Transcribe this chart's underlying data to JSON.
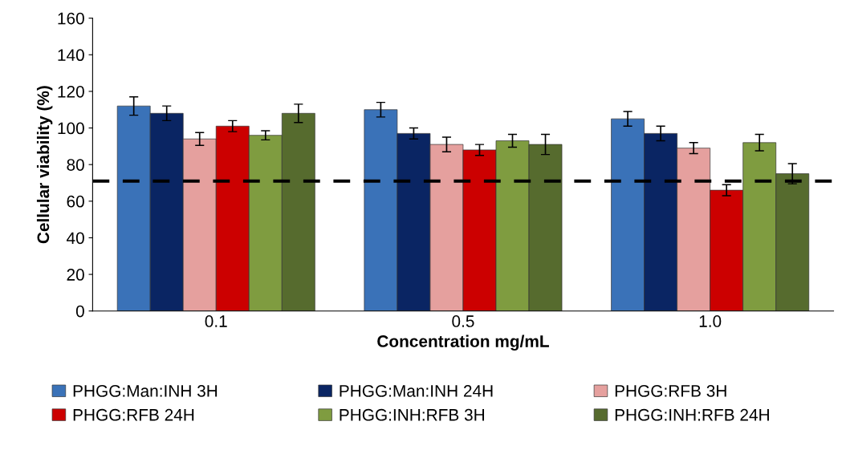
{
  "chart_data": {
    "type": "bar",
    "xlabel": "Concentration mg/mL",
    "ylabel": "Cellular viability (%)",
    "categories": [
      "0.1",
      "0.5",
      "1.0"
    ],
    "series": [
      {
        "name": "PHGG:Man:INH 3H",
        "color": "#3a72b8",
        "values": [
          112,
          110,
          105
        ],
        "errors": [
          5,
          4,
          4
        ]
      },
      {
        "name": "PHGG:Man:INH 24H",
        "color": "#0a2563",
        "values": [
          108,
          97,
          97
        ],
        "errors": [
          4,
          3,
          4
        ]
      },
      {
        "name": "PHGG:RFB 3H",
        "color": "#e5a09e",
        "values": [
          94,
          91,
          89
        ],
        "errors": [
          3.5,
          4,
          3
        ]
      },
      {
        "name": "PHGG:RFB 24H",
        "color": "#cc0000",
        "values": [
          101,
          88,
          66
        ],
        "errors": [
          3,
          3,
          3
        ]
      },
      {
        "name": "PHGG:INH:RFB 3H",
        "color": "#7f9c40",
        "values": [
          96,
          93,
          92
        ],
        "errors": [
          2.5,
          3.5,
          4.5
        ]
      },
      {
        "name": "PHGG:INH:RFB 24H",
        "color": "#566b2e",
        "values": [
          108,
          91,
          75
        ],
        "errors": [
          5,
          5.5,
          5.5
        ]
      }
    ],
    "ylim": [
      0,
      160
    ],
    "yticks": [
      0,
      20,
      40,
      60,
      80,
      100,
      120,
      140,
      160
    ],
    "ref_lines": [
      {
        "axis": "y",
        "value": 71,
        "color": "#000000",
        "line_style": "dashed"
      }
    ],
    "grid": false,
    "legend": "bottom"
  }
}
